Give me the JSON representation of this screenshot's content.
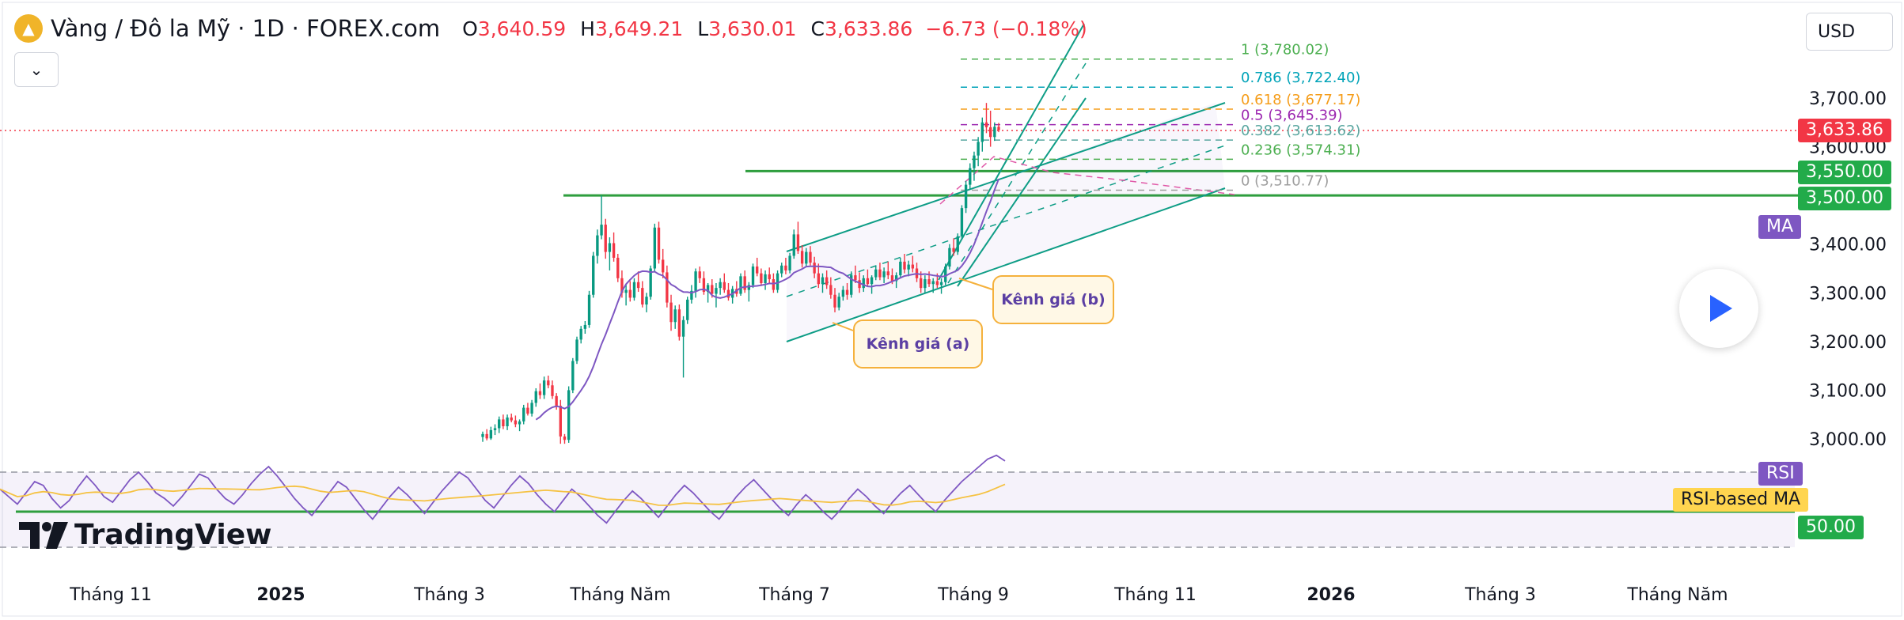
{
  "header": {
    "title": "Vàng / Đô la Mỹ · 1D · FOREX.com",
    "ohlc": [
      {
        "label": "O",
        "value": "3,640.59"
      },
      {
        "label": "H",
        "value": "3,649.21"
      },
      {
        "label": "L",
        "value": "3,630.01"
      },
      {
        "label": "C",
        "value": "3,633.86"
      }
    ],
    "change": "−6.73 (−0.18%)",
    "currency": "USD"
  },
  "brand": "TradingView",
  "colors": {
    "up": "#089981",
    "down": "#f23645",
    "ma": "#7e57c2",
    "rsi": "#7e57c2",
    "rsi_ma": "#f5c242",
    "level": "#2e9e3e",
    "channel": "#0e9d86"
  },
  "price_tags": {
    "last": "3,633.86",
    "level_1": "3,550.00",
    "level_2": "3,500.00",
    "ma": "MA",
    "rsi": "RSI",
    "rsi_ma": "RSI-based MA",
    "rsi_level": "50.00"
  },
  "annotations": {
    "channel_a": "Kênh giá (a)",
    "channel_b": "Kênh giá (b)"
  },
  "chart_data": {
    "type": "candlestick",
    "title": "Vàng / Đô la Mỹ · 1D · FOREX.com",
    "x_ticks": [
      "Tháng 11",
      "2025",
      "Tháng 3",
      "Tháng Năm",
      "Tháng 7",
      "Tháng 9",
      "Tháng 11",
      "2026",
      "Tháng 3",
      "Tháng Năm"
    ],
    "y_ticks": [
      "3,700.00",
      "3,600.00",
      "3,500.00",
      "3,400.00",
      "3,300.00",
      "3,200.00",
      "3,100.00",
      "3,000.00"
    ],
    "ylim": [
      2960,
      3790
    ],
    "last_close": 3633.86,
    "horizontal_levels": [
      3550,
      3500
    ],
    "fibonacci": [
      {
        "ratio": 1,
        "price": 3780.02,
        "label": "1 (3,780.02)",
        "color": "#4caf50"
      },
      {
        "ratio": 0.786,
        "price": 3722.4,
        "label": "0.786 (3,722.40)",
        "color": "#00a3b8"
      },
      {
        "ratio": 0.618,
        "price": 3677.17,
        "label": "0.618 (3,677.17)",
        "color": "#f59d1a"
      },
      {
        "ratio": 0.5,
        "price": 3645.39,
        "label": "0.5 (3,645.39)",
        "color": "#9c27b0"
      },
      {
        "ratio": 0.382,
        "price": 3613.62,
        "label": "0.382 (3,613.62)",
        "color": "#5aa7a0"
      },
      {
        "ratio": 0.236,
        "price": 3574.31,
        "label": "0.236 (3,574.31)",
        "color": "#4caf50"
      },
      {
        "ratio": 0,
        "price": 3510.77,
        "label": "0 (3,510.77)",
        "color": "#9e9e9e"
      }
    ],
    "candles": [
      [
        3004,
        3015,
        2994,
        3010
      ],
      [
        3010,
        3020,
        2997,
        3001
      ],
      [
        3001,
        3025,
        2998,
        3018
      ],
      [
        3018,
        3030,
        3008,
        3022
      ],
      [
        3022,
        3046,
        3012,
        3040
      ],
      [
        3040,
        3050,
        3020,
        3026
      ],
      [
        3026,
        3050,
        3018,
        3044
      ],
      [
        3044,
        3052,
        3034,
        3038
      ],
      [
        3038,
        3048,
        3024,
        3030
      ],
      [
        3030,
        3040,
        3016,
        3036
      ],
      [
        3036,
        3070,
        3030,
        3064
      ],
      [
        3064,
        3074,
        3048,
        3052
      ],
      [
        3052,
        3080,
        3046,
        3074
      ],
      [
        3074,
        3104,
        3066,
        3098
      ],
      [
        3098,
        3114,
        3082,
        3090
      ],
      [
        3090,
        3128,
        3082,
        3120
      ],
      [
        3120,
        3130,
        3104,
        3110
      ],
      [
        3110,
        3120,
        3082,
        3088
      ],
      [
        3088,
        3094,
        3060,
        3068
      ],
      [
        3068,
        3080,
        2990,
        3005
      ],
      [
        3005,
        3010,
        2990,
        2998
      ],
      [
        2998,
        3108,
        2992,
        3100
      ],
      [
        3100,
        3166,
        3094,
        3160
      ],
      [
        3160,
        3210,
        3154,
        3204
      ],
      [
        3204,
        3232,
        3196,
        3226
      ],
      [
        3226,
        3242,
        3216,
        3234
      ],
      [
        3234,
        3304,
        3228,
        3296
      ],
      [
        3296,
        3384,
        3290,
        3376
      ],
      [
        3376,
        3430,
        3360,
        3418
      ],
      [
        3418,
        3500,
        3410,
        3440
      ],
      [
        3440,
        3452,
        3370,
        3384
      ],
      [
        3384,
        3414,
        3346,
        3402
      ],
      [
        3402,
        3424,
        3364,
        3372
      ],
      [
        3372,
        3380,
        3322,
        3330
      ],
      [
        3330,
        3346,
        3290,
        3300
      ],
      [
        3300,
        3318,
        3274,
        3306
      ],
      [
        3306,
        3324,
        3282,
        3290
      ],
      [
        3290,
        3330,
        3284,
        3322
      ],
      [
        3322,
        3344,
        3302,
        3310
      ],
      [
        3310,
        3324,
        3270,
        3276
      ],
      [
        3276,
        3300,
        3260,
        3292
      ],
      [
        3292,
        3356,
        3286,
        3350
      ],
      [
        3350,
        3442,
        3344,
        3434
      ],
      [
        3434,
        3446,
        3360,
        3368
      ],
      [
        3368,
        3390,
        3330,
        3342
      ],
      [
        3342,
        3356,
        3270,
        3280
      ],
      [
        3280,
        3296,
        3222,
        3240
      ],
      [
        3240,
        3274,
        3226,
        3266
      ],
      [
        3266,
        3276,
        3202,
        3210
      ],
      [
        3210,
        3252,
        3126,
        3244
      ],
      [
        3244,
        3292,
        3236,
        3286
      ],
      [
        3286,
        3316,
        3278,
        3304
      ],
      [
        3304,
        3350,
        3290,
        3344
      ],
      [
        3344,
        3354,
        3320,
        3330
      ],
      [
        3330,
        3344,
        3296,
        3302
      ],
      [
        3302,
        3320,
        3280,
        3316
      ],
      [
        3316,
        3328,
        3290,
        3298
      ],
      [
        3298,
        3320,
        3270,
        3310
      ],
      [
        3310,
        3330,
        3296,
        3322
      ],
      [
        3322,
        3340,
        3300,
        3306
      ],
      [
        3306,
        3320,
        3284,
        3290
      ],
      [
        3290,
        3314,
        3278,
        3308
      ],
      [
        3308,
        3324,
        3292,
        3298
      ],
      [
        3298,
        3340,
        3294,
        3334
      ],
      [
        3334,
        3346,
        3300,
        3306
      ],
      [
        3306,
        3322,
        3282,
        3316
      ],
      [
        3316,
        3360,
        3310,
        3354
      ],
      [
        3354,
        3372,
        3334,
        3340
      ],
      [
        3340,
        3350,
        3314,
        3320
      ],
      [
        3320,
        3346,
        3306,
        3338
      ],
      [
        3338,
        3352,
        3320,
        3328
      ],
      [
        3328,
        3340,
        3300,
        3306
      ],
      [
        3306,
        3346,
        3300,
        3340
      ],
      [
        3340,
        3362,
        3332,
        3356
      ],
      [
        3356,
        3372,
        3338,
        3346
      ],
      [
        3346,
        3382,
        3340,
        3376
      ],
      [
        3376,
        3430,
        3370,
        3420
      ],
      [
        3420,
        3446,
        3380,
        3386
      ],
      [
        3386,
        3398,
        3352,
        3360
      ],
      [
        3360,
        3392,
        3354,
        3384
      ],
      [
        3384,
        3396,
        3356,
        3362
      ],
      [
        3362,
        3374,
        3330,
        3340
      ],
      [
        3340,
        3360,
        3310,
        3318
      ],
      [
        3318,
        3340,
        3300,
        3332
      ],
      [
        3332,
        3346,
        3308,
        3316
      ],
      [
        3316,
        3332,
        3288,
        3296
      ],
      [
        3296,
        3310,
        3260,
        3270
      ],
      [
        3270,
        3300,
        3264,
        3292
      ],
      [
        3292,
        3314,
        3284,
        3306
      ],
      [
        3306,
        3320,
        3286,
        3296
      ],
      [
        3296,
        3344,
        3290,
        3336
      ],
      [
        3336,
        3356,
        3320,
        3326
      ],
      [
        3326,
        3342,
        3300,
        3310
      ],
      [
        3310,
        3336,
        3302,
        3330
      ],
      [
        3330,
        3348,
        3312,
        3318
      ],
      [
        3318,
        3336,
        3298,
        3332
      ],
      [
        3332,
        3356,
        3326,
        3348
      ],
      [
        3348,
        3362,
        3326,
        3332
      ],
      [
        3332,
        3352,
        3320,
        3344
      ],
      [
        3344,
        3364,
        3328,
        3336
      ],
      [
        3336,
        3350,
        3318,
        3324
      ],
      [
        3324,
        3342,
        3310,
        3336
      ],
      [
        3336,
        3372,
        3330,
        3364
      ],
      [
        3364,
        3380,
        3340,
        3348
      ],
      [
        3348,
        3366,
        3334,
        3358
      ],
      [
        3358,
        3376,
        3342,
        3350
      ],
      [
        3350,
        3362,
        3322,
        3330
      ],
      [
        3330,
        3344,
        3300,
        3310
      ],
      [
        3310,
        3336,
        3300,
        3328
      ],
      [
        3328,
        3344,
        3312,
        3318
      ],
      [
        3318,
        3330,
        3300,
        3324
      ],
      [
        3324,
        3340,
        3310,
        3316
      ],
      [
        3316,
        3330,
        3298,
        3322
      ],
      [
        3322,
        3360,
        3316,
        3354
      ],
      [
        3354,
        3400,
        3348,
        3392
      ],
      [
        3392,
        3412,
        3376,
        3384
      ],
      [
        3384,
        3422,
        3378,
        3416
      ],
      [
        3416,
        3480,
        3410,
        3474
      ],
      [
        3474,
        3530,
        3464,
        3522
      ],
      [
        3522,
        3566,
        3514,
        3556
      ],
      [
        3556,
        3590,
        3530,
        3582
      ],
      [
        3582,
        3620,
        3560,
        3610
      ],
      [
        3610,
        3660,
        3590,
        3650
      ],
      [
        3650,
        3690,
        3628,
        3640
      ],
      [
        3640,
        3674,
        3600,
        3620
      ],
      [
        3620,
        3650,
        3612,
        3641
      ],
      [
        3641,
        3649,
        3630,
        3634
      ]
    ],
    "ma": {
      "name": "MA"
    },
    "rsi": {
      "name": "RSI",
      "ma_name": "RSI-based MA",
      "level": 50,
      "values": [
        62,
        58,
        54,
        60,
        66,
        64,
        57,
        52,
        56,
        63,
        69,
        64,
        58,
        55,
        61,
        67,
        71,
        66,
        60,
        57,
        53,
        58,
        64,
        70,
        68,
        62,
        57,
        54,
        59,
        65,
        70,
        74,
        69,
        63,
        57,
        52,
        48,
        54,
        60,
        66,
        63,
        57,
        51,
        46,
        52,
        58,
        63,
        59,
        54,
        49,
        55,
        61,
        66,
        71,
        68,
        62,
        56,
        52,
        58,
        64,
        69,
        65,
        59,
        54,
        50,
        56,
        62,
        58,
        53,
        48,
        44,
        50,
        56,
        61,
        57,
        52,
        47,
        53,
        59,
        64,
        60,
        55,
        50,
        46,
        52,
        58,
        63,
        67,
        62,
        57,
        52,
        48,
        54,
        59,
        55,
        50,
        46,
        51,
        57,
        62,
        58,
        53,
        49,
        55,
        60,
        64,
        59,
        54,
        50,
        56,
        61,
        66,
        70,
        74,
        78,
        80,
        77
      ]
    }
  }
}
